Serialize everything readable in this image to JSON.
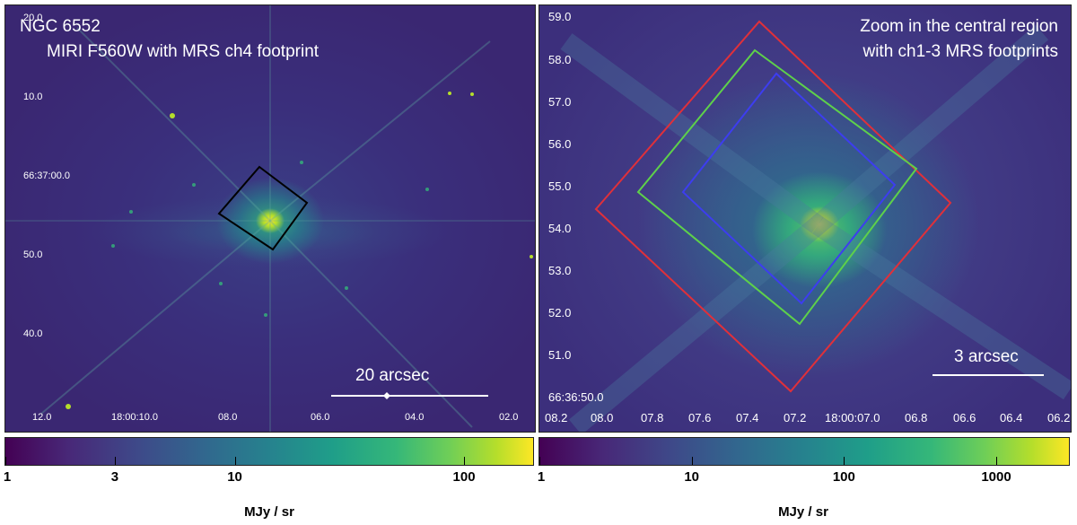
{
  "left_panel": {
    "title_line1": "NGC 6552",
    "title_line2": "MIRI F560W with MRS ch4 footprint",
    "y_ticks": [
      "20.0",
      "10.0",
      "66:37:00.0",
      "50.0",
      "40.0"
    ],
    "x_ticks": [
      "12.0",
      "18:00:10.0",
      "08.0",
      "06.0",
      "04.0",
      "02.0"
    ],
    "scale_bar_label": "20 arcsec",
    "footprint_color": "#000000"
  },
  "right_panel": {
    "title_line1": "Zoom in the central region",
    "title_line2": "with ch1-3 MRS footprints",
    "y_ticks": [
      "59.0",
      "58.0",
      "57.0",
      "56.0",
      "55.0",
      "54.0",
      "53.0",
      "52.0",
      "51.0",
      "66:36:50.0"
    ],
    "x_ticks": [
      "08.2",
      "08.0",
      "07.8",
      "07.6",
      "07.4",
      "07.2",
      "18:00:07.0",
      "06.8",
      "06.6",
      "06.4",
      "06.2"
    ],
    "scale_bar_label": "3 arcsec",
    "footprint_colors": {
      "ch1": "#3d3df0",
      "ch2": "#5ed14a",
      "ch3": "#e0303a"
    }
  },
  "left_colorbar": {
    "tick_labels": [
      "1",
      "3",
      "10",
      "100"
    ],
    "tick_values": [
      1,
      3,
      10,
      100
    ],
    "min": 1,
    "max": 200,
    "unit": "MJy / sr",
    "colormap": "viridis"
  },
  "right_colorbar": {
    "tick_labels": [
      "1",
      "10",
      "100",
      "1000"
    ],
    "tick_values": [
      1,
      10,
      100,
      1000
    ],
    "min": 1,
    "max": 3000,
    "unit": "MJy / sr",
    "colormap": "viridis"
  }
}
